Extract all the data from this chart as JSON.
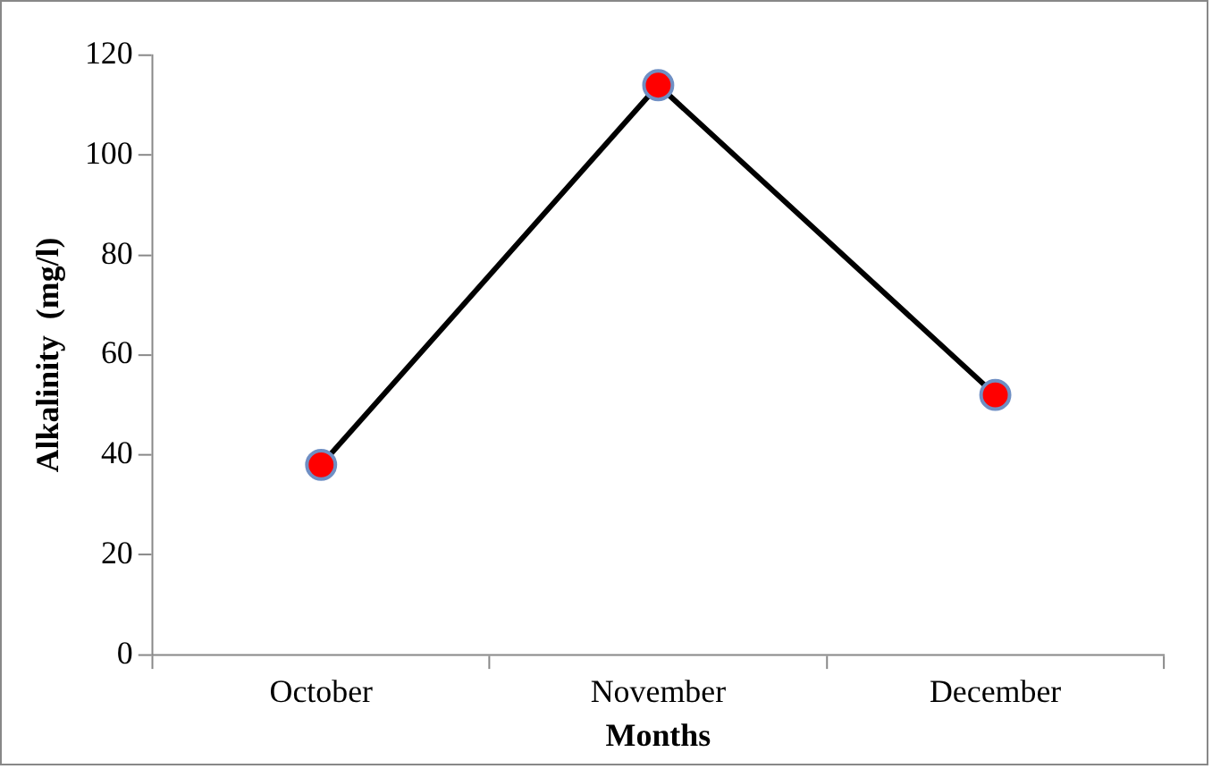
{
  "chart_data": {
    "type": "line",
    "xlabel": "Months",
    "ylabel": "Alkalinity  (mg/l)",
    "categories": [
      "October",
      "November",
      "December"
    ],
    "series": [
      {
        "color": "#000000",
        "values": [
          38,
          114,
          52
        ]
      }
    ],
    "ylim": [
      0,
      120
    ],
    "yticks": [
      0,
      20,
      40,
      60,
      80,
      100,
      120
    ],
    "grid": false,
    "legend": false,
    "marker": "circle",
    "line_style": "solid"
  }
}
